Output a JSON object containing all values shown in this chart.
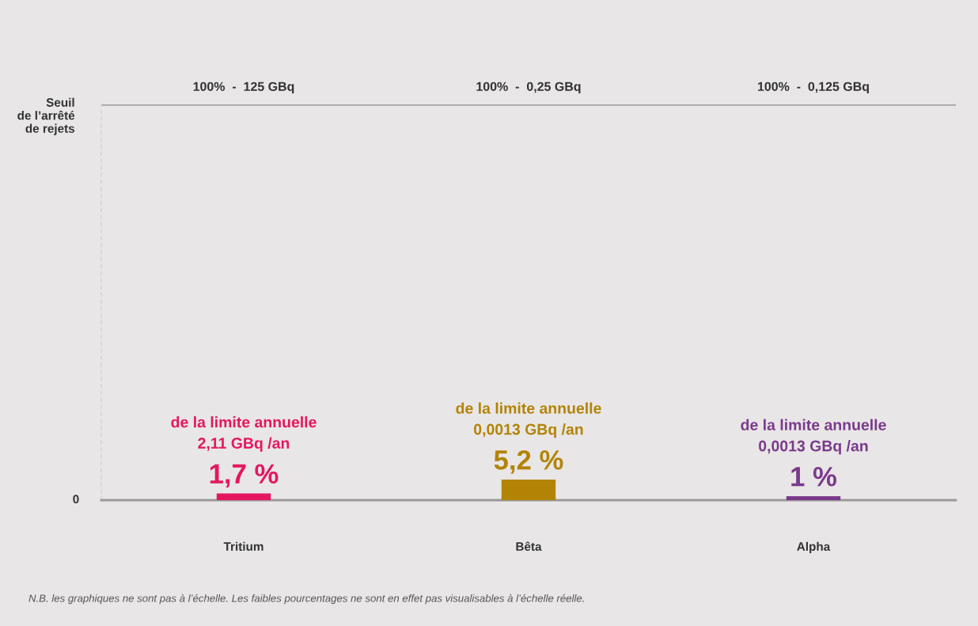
{
  "chart_data": {
    "type": "bar",
    "categories": [
      "Tritium",
      "Bêta",
      "Alpha"
    ],
    "values": [
      1.7,
      5.2,
      1
    ],
    "colors": [
      "#e5165f",
      "#b38306",
      "#7a3a8c"
    ],
    "value_labels": [
      "1,7 %",
      "5,2 %",
      "1 %"
    ],
    "ylim": [
      0,
      100
    ],
    "grid": false,
    "ref_lines": [
      {
        "axis": "y",
        "value": 100,
        "label": "Seuil\nde l’arrêté\nde rejets",
        "color": "#9a9a9a"
      }
    ],
    "annotations": [
      "100%  -  125 GBq",
      "100%  -  0,25 GBq",
      "100%  -  0,125 GBq",
      "de la limite annuelle\n2,11 GBq /an",
      "de la limite annuelle\n0,0013 GBq /an",
      "de la limite annuelle\n0,0013 GBq /an",
      "0",
      "N.B. les graphiques ne sont pas à l’échelle. Les faibles pourcentages ne sont en effet pas visualisables à l’échelle réelle."
    ]
  }
}
